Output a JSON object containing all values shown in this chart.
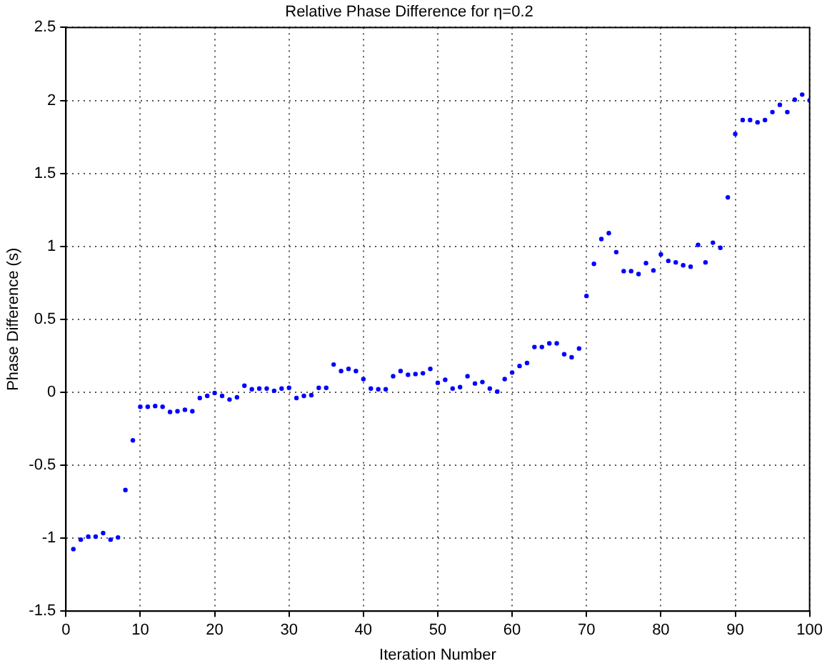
{
  "chart_data": {
    "type": "scatter",
    "title": "Relative Phase Difference for η=0.2",
    "xlabel": "Iteration Number",
    "ylabel": "Phase Difference (s)",
    "x": [
      1,
      2,
      3,
      4,
      5,
      6,
      7,
      8,
      9,
      10,
      11,
      12,
      13,
      14,
      15,
      16,
      17,
      18,
      19,
      20,
      21,
      22,
      23,
      24,
      25,
      26,
      27,
      28,
      29,
      30,
      31,
      32,
      33,
      34,
      35,
      36,
      37,
      38,
      39,
      40,
      41,
      42,
      43,
      44,
      45,
      46,
      47,
      48,
      49,
      50,
      51,
      52,
      53,
      54,
      55,
      56,
      57,
      58,
      59,
      60,
      61,
      62,
      63,
      64,
      65,
      66,
      67,
      68,
      69,
      70,
      71,
      72,
      73,
      74,
      75,
      76,
      77,
      78,
      79,
      80,
      81,
      82,
      83,
      84,
      85,
      86,
      87,
      88,
      89,
      90,
      91,
      92,
      93,
      94,
      95,
      96,
      97,
      98,
      99,
      100
    ],
    "series": [
      {
        "color": "#0000ff",
        "values": [
          -1.075,
          -1.01,
          -0.99,
          -0.99,
          -0.965,
          -1.01,
          -0.995,
          -0.67,
          -0.33,
          -0.1,
          -0.1,
          -0.095,
          -0.1,
          -0.135,
          -0.13,
          -0.12,
          -0.13,
          -0.04,
          -0.025,
          -0.005,
          -0.025,
          -0.05,
          -0.035,
          0.045,
          0.02,
          0.025,
          0.025,
          0.01,
          0.025,
          0.03,
          -0.04,
          -0.025,
          -0.02,
          0.03,
          0.03,
          0.19,
          0.145,
          0.16,
          0.145,
          0.09,
          0.025,
          0.02,
          0.02,
          0.11,
          0.145,
          0.12,
          0.125,
          0.13,
          0.16,
          0.065,
          0.085,
          0.025,
          0.035,
          0.11,
          0.06,
          0.07,
          0.025,
          0.005,
          0.09,
          0.135,
          0.18,
          0.2,
          0.31,
          0.31,
          0.335,
          0.335,
          0.26,
          0.24,
          0.3,
          0.66,
          0.88,
          1.05,
          1.09,
          0.96,
          0.83,
          0.83,
          0.81,
          0.885,
          0.835,
          0.945,
          0.9,
          0.89,
          0.87,
          0.86,
          1.01,
          0.89,
          1.025,
          0.99,
          1.335,
          1.77,
          1.865,
          1.865,
          1.85,
          1.865,
          1.92,
          1.97,
          1.92,
          2.005,
          2.04,
          2.0
        ]
      }
    ],
    "xlim": [
      0,
      100
    ],
    "xticks": [
      0,
      10,
      20,
      30,
      40,
      50,
      60,
      70,
      80,
      90,
      100
    ],
    "ylim": [
      -1.5,
      2.5
    ],
    "yticks": [
      -1.5,
      -1,
      -0.5,
      0,
      0.5,
      1,
      1.5,
      2,
      2.5
    ],
    "grid": true,
    "marker": "circle",
    "line_style": "none"
  }
}
